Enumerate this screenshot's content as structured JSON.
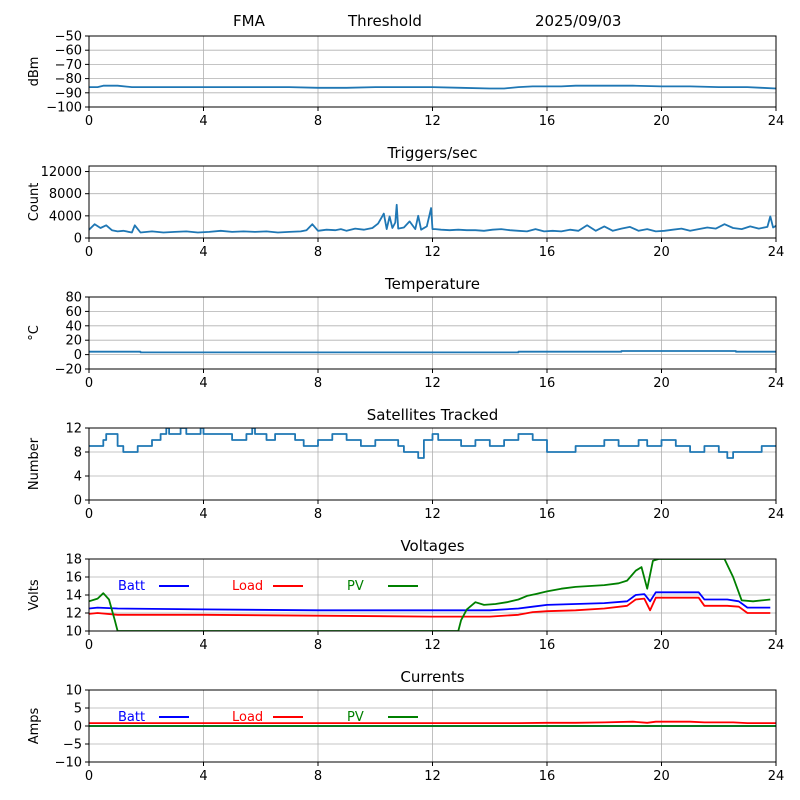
{
  "header": {
    "station": "FMA",
    "mode": "Threshold",
    "date": "2025/09/03"
  },
  "chart_data": [
    {
      "type": "line",
      "title": "",
      "xlabel": "",
      "ylabel": "dBm",
      "xlim": [
        0,
        24
      ],
      "ylim": [
        -100,
        -50
      ],
      "xticks": [
        0,
        4,
        8,
        12,
        16,
        20,
        24
      ],
      "yticks": [
        -100,
        -90,
        -80,
        -70,
        -60,
        -50
      ],
      "ytick_labels": [
        "−100",
        "−90",
        "−80",
        "−70",
        "−60",
        "−50"
      ],
      "grid": true,
      "series": [
        {
          "color": "#1f77b4",
          "x": [
            0,
            0.3,
            0.5,
            1.0,
            1.5,
            2,
            3,
            4,
            5,
            6,
            7,
            8,
            9,
            10,
            11,
            12,
            13,
            14,
            14.5,
            15,
            15.5,
            16,
            16.5,
            17,
            18,
            19,
            20,
            21,
            22,
            23,
            23.5,
            24
          ],
          "y": [
            -86,
            -86,
            -85,
            -85,
            -86,
            -86,
            -86,
            -86,
            -86,
            -86,
            -86,
            -86.5,
            -86.5,
            -86,
            -86,
            -86,
            -86.5,
            -87,
            -87,
            -86,
            -85.5,
            -85.5,
            -85.5,
            -85,
            -85,
            -85,
            -85.5,
            -85.5,
            -86,
            -86,
            -86.5,
            -87
          ]
        }
      ]
    },
    {
      "type": "line",
      "title": "Triggers/sec",
      "xlabel": "",
      "ylabel": "Count",
      "xlim": [
        0,
        24
      ],
      "ylim": [
        0,
        13000
      ],
      "xticks": [
        0,
        4,
        8,
        12,
        16,
        20,
        24
      ],
      "yticks": [
        0,
        4000,
        8000,
        12000
      ],
      "grid": true,
      "series": [
        {
          "color": "#1f77b4",
          "x": [
            0,
            0.2,
            0.4,
            0.6,
            0.8,
            1.0,
            1.2,
            1.5,
            1.6,
            1.8,
            2.2,
            2.6,
            3.0,
            3.4,
            3.8,
            4.2,
            4.6,
            5.0,
            5.4,
            5.8,
            6.2,
            6.6,
            7.0,
            7.4,
            7.6,
            7.8,
            8.0,
            8.3,
            8.6,
            8.8,
            9.0,
            9.3,
            9.6,
            9.9,
            10.1,
            10.3,
            10.4,
            10.5,
            10.6,
            10.7,
            10.75,
            10.8,
            11.0,
            11.2,
            11.4,
            11.5,
            11.6,
            11.8,
            11.95,
            12.0,
            12.1,
            12.3,
            12.6,
            12.9,
            13.2,
            13.5,
            13.8,
            14.1,
            14.4,
            14.7,
            15.0,
            15.3,
            15.6,
            15.9,
            16.2,
            16.5,
            16.8,
            17.1,
            17.4,
            17.7,
            18.0,
            18.3,
            18.6,
            18.9,
            19.2,
            19.5,
            19.8,
            20.1,
            20.4,
            20.7,
            21.0,
            21.3,
            21.6,
            21.9,
            22.2,
            22.5,
            22.8,
            23.1,
            23.4,
            23.7,
            23.8,
            23.9,
            24
          ],
          "y": [
            1500,
            2500,
            1800,
            2300,
            1400,
            1200,
            1300,
            1000,
            2300,
            1000,
            1200,
            1000,
            1100,
            1200,
            1000,
            1100,
            1300,
            1100,
            1200,
            1100,
            1200,
            1000,
            1100,
            1200,
            1400,
            2500,
            1300,
            1500,
            1400,
            1600,
            1300,
            1700,
            1500,
            1800,
            2600,
            4400,
            1600,
            3900,
            1800,
            2800,
            6000,
            1700,
            1900,
            3000,
            1600,
            4000,
            1500,
            2100,
            5400,
            1600,
            1600,
            1500,
            1400,
            1500,
            1400,
            1400,
            1300,
            1500,
            1600,
            1400,
            1300,
            1200,
            1600,
            1200,
            1300,
            1200,
            1500,
            1300,
            2300,
            1300,
            2100,
            1300,
            1700,
            2000,
            1300,
            1600,
            1200,
            1300,
            1500,
            1700,
            1300,
            1600,
            1900,
            1700,
            2500,
            1800,
            1600,
            2100,
            1700,
            2000,
            3900,
            1900,
            2200
          ]
        }
      ]
    },
    {
      "type": "line",
      "title": "Temperature",
      "xlabel": "",
      "ylabel": "°C",
      "xlim": [
        0,
        24
      ],
      "ylim": [
        -20,
        80
      ],
      "xticks": [
        0,
        4,
        8,
        12,
        16,
        20,
        24
      ],
      "yticks": [
        -20,
        0,
        20,
        40,
        60,
        80
      ],
      "ytick_labels": [
        "−20",
        "0",
        "20",
        "40",
        "60",
        "80"
      ],
      "grid": true,
      "series": [
        {
          "color": "#1f77b4",
          "x": [
            0,
            1.8,
            1.8,
            15.0,
            15.0,
            18.6,
            18.6,
            22.6,
            22.6,
            24
          ],
          "y": [
            4,
            4,
            3,
            3,
            4,
            4,
            5,
            5,
            4,
            4
          ]
        }
      ]
    },
    {
      "type": "line",
      "title": "Satellites Tracked",
      "xlabel": "",
      "ylabel": "Number",
      "xlim": [
        0,
        24
      ],
      "ylim": [
        0,
        12
      ],
      "xticks": [
        0,
        4,
        8,
        12,
        16,
        20,
        24
      ],
      "yticks": [
        0,
        4,
        8,
        12
      ],
      "grid": true,
      "series": [
        {
          "color": "#1f77b4",
          "x": [
            0,
            0.5,
            0.5,
            0.6,
            0.6,
            1.0,
            1.0,
            1.2,
            1.2,
            1.7,
            1.7,
            2.2,
            2.2,
            2.5,
            2.5,
            2.7,
            2.7,
            2.8,
            2.8,
            3.2,
            3.2,
            3.4,
            3.4,
            3.9,
            3.9,
            4.0,
            4.0,
            5.0,
            5.0,
            5.5,
            5.5,
            5.7,
            5.7,
            5.8,
            5.8,
            6.2,
            6.2,
            6.5,
            6.5,
            7.2,
            7.2,
            7.5,
            7.5,
            8.0,
            8.0,
            8.5,
            8.5,
            9.0,
            9.0,
            9.5,
            9.5,
            10.0,
            10.0,
            10.8,
            10.8,
            11.0,
            11.0,
            11.5,
            11.5,
            11.7,
            11.7,
            12.0,
            12.0,
            12.2,
            12.2,
            13.0,
            13.0,
            13.5,
            13.5,
            14.0,
            14.0,
            14.5,
            14.5,
            15.0,
            15.0,
            15.5,
            15.5,
            16.0,
            16.0,
            17.0,
            17.0,
            18.0,
            18.0,
            18.5,
            18.5,
            19.2,
            19.2,
            19.5,
            19.5,
            20.0,
            20.0,
            20.5,
            20.5,
            21.0,
            21.0,
            21.5,
            21.5,
            22.0,
            22.0,
            22.3,
            22.3,
            22.5,
            22.5,
            23.5,
            23.5,
            24
          ],
          "y": [
            9,
            9,
            10,
            10,
            11,
            11,
            9,
            9,
            8,
            8,
            9,
            9,
            10,
            10,
            11,
            11,
            12,
            12,
            11,
            11,
            12,
            12,
            11,
            11,
            12,
            12,
            11,
            11,
            10,
            10,
            11,
            11,
            12,
            12,
            11,
            11,
            10,
            10,
            11,
            11,
            10,
            10,
            9,
            9,
            10,
            10,
            11,
            11,
            10,
            10,
            9,
            9,
            10,
            10,
            9,
            9,
            8,
            8,
            7,
            7,
            10,
            10,
            11,
            11,
            10,
            10,
            9,
            9,
            10,
            10,
            9,
            9,
            10,
            10,
            11,
            11,
            10,
            10,
            8,
            8,
            9,
            9,
            10,
            10,
            9,
            9,
            10,
            10,
            9,
            9,
            10,
            10,
            9,
            9,
            8,
            8,
            9,
            9,
            8,
            8,
            7,
            7,
            8,
            8,
            9,
            9
          ]
        }
      ]
    },
    {
      "type": "line",
      "title": "Voltages",
      "xlabel": "",
      "ylabel": "Volts",
      "xlim": [
        0,
        24
      ],
      "ylim": [
        10,
        18
      ],
      "xticks": [
        0,
        4,
        8,
        12,
        16,
        20,
        24
      ],
      "yticks": [
        10,
        12,
        14,
        16,
        18
      ],
      "grid": true,
      "legend": "top-left, inline",
      "series": [
        {
          "name": "Batt",
          "color": "#0000ff",
          "x": [
            0,
            0.3,
            1,
            4,
            8,
            12,
            14,
            15,
            15.5,
            16,
            17,
            18,
            18.8,
            19.1,
            19.4,
            19.6,
            19.8,
            21.3,
            21.5,
            22.3,
            22.7,
            23.0,
            23.8
          ],
          "y": [
            12.5,
            12.6,
            12.5,
            12.4,
            12.3,
            12.3,
            12.3,
            12.5,
            12.7,
            12.9,
            13.0,
            13.1,
            13.3,
            14.0,
            14.1,
            13.3,
            14.3,
            14.3,
            13.5,
            13.5,
            13.3,
            12.6,
            12.6
          ]
        },
        {
          "name": "Load",
          "color": "#ff0000",
          "x": [
            0,
            0.3,
            1,
            4,
            8,
            12,
            14,
            15,
            15.5,
            16,
            17,
            18,
            18.8,
            19.1,
            19.4,
            19.6,
            19.8,
            21.3,
            21.5,
            22.3,
            22.7,
            23.0,
            23.8
          ],
          "y": [
            11.9,
            12.0,
            11.8,
            11.8,
            11.7,
            11.6,
            11.6,
            11.8,
            12.1,
            12.2,
            12.3,
            12.5,
            12.8,
            13.5,
            13.6,
            12.3,
            13.7,
            13.7,
            12.8,
            12.8,
            12.7,
            12.0,
            12.0
          ]
        },
        {
          "name": "PV",
          "color": "#008000",
          "x": [
            0,
            0.3,
            0.5,
            0.7,
            0.9,
            1.0,
            12.9,
            13.0,
            13.2,
            13.5,
            13.8,
            14.2,
            14.6,
            15.0,
            15.3,
            15.6,
            16.0,
            16.5,
            17.0,
            17.5,
            18.0,
            18.5,
            18.8,
            19.1,
            19.3,
            19.5,
            19.7,
            19.9,
            22.2,
            22.5,
            22.8,
            23.2,
            23.8
          ],
          "y": [
            13.3,
            13.6,
            14.2,
            13.5,
            11.2,
            10.0,
            10.0,
            11.2,
            12.4,
            13.2,
            12.9,
            13.0,
            13.2,
            13.5,
            13.9,
            14.1,
            14.4,
            14.7,
            14.9,
            15.0,
            15.1,
            15.3,
            15.6,
            16.7,
            17.1,
            14.7,
            17.8,
            18.0,
            18.0,
            16.0,
            13.4,
            13.3,
            13.5
          ]
        }
      ]
    },
    {
      "type": "line",
      "title": "Currents",
      "xlabel": "",
      "ylabel": "Amps",
      "xlim": [
        0,
        24
      ],
      "ylim": [
        -10,
        10
      ],
      "xticks": [
        0,
        4,
        8,
        12,
        16,
        20,
        24
      ],
      "yticks": [
        -10,
        -5,
        0,
        5,
        10
      ],
      "ytick_labels": [
        "−10",
        "−5",
        "0",
        "5",
        "10"
      ],
      "grid": true,
      "legend": "top-left, inline",
      "series": [
        {
          "name": "Batt",
          "color": "#0000ff",
          "x": [
            0,
            24
          ],
          "y": [
            0,
            0
          ]
        },
        {
          "name": "Load",
          "color": "#ff0000",
          "x": [
            0,
            4,
            8,
            12,
            15,
            16,
            17,
            18,
            19,
            19.5,
            19.8,
            21,
            21.5,
            22.5,
            23,
            24
          ],
          "y": [
            0.8,
            0.8,
            0.8,
            0.8,
            0.8,
            0.9,
            0.9,
            1.0,
            1.2,
            0.9,
            1.2,
            1.2,
            1.0,
            1.0,
            0.8,
            0.8
          ]
        },
        {
          "name": "PV",
          "color": "#008000",
          "x": [
            0,
            24
          ],
          "y": [
            0,
            0
          ]
        }
      ]
    }
  ]
}
